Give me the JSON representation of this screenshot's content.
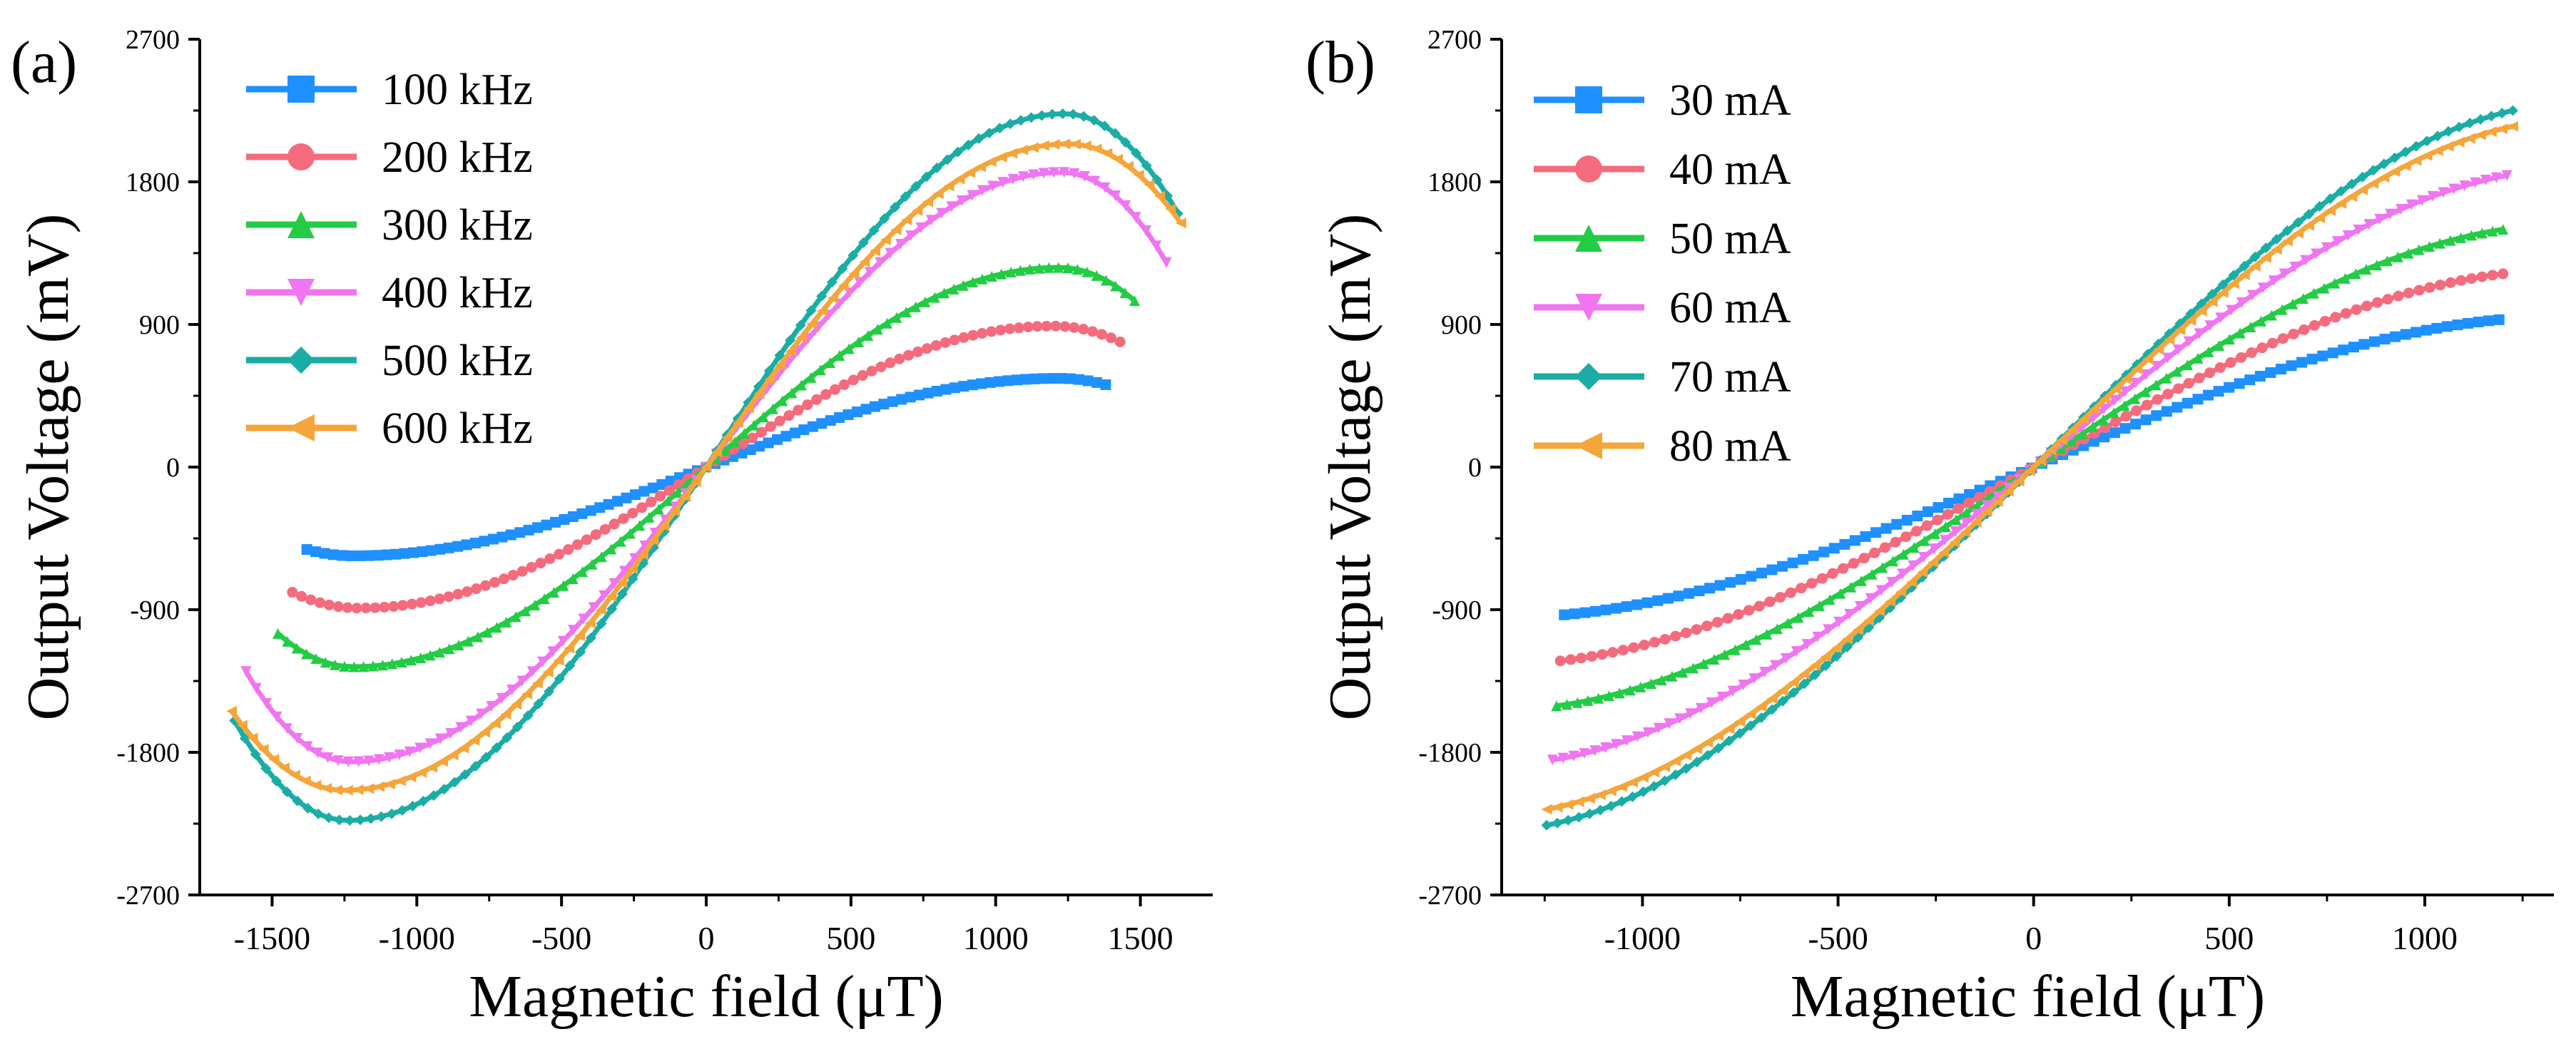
{
  "chart_data": [
    {
      "type": "line",
      "panel_label": "(a)",
      "title": "",
      "xlabel": "Magnetic field (μT)",
      "ylabel": "Output Voltage (mV)",
      "xlim": [
        -1750,
        1750
      ],
      "ylim": [
        -2700,
        2700
      ],
      "xticks": [
        -1500,
        -1000,
        -500,
        0,
        500,
        1000,
        1500
      ],
      "yticks": [
        -2700,
        -1800,
        -900,
        0,
        900,
        1800,
        2700
      ],
      "grid": false,
      "legend_position": "top-left",
      "curve_model": "saturating",
      "series": [
        {
          "name": "100 kHz",
          "color": "#1e90ff",
          "marker": "square",
          "x_range": [
            -1380,
            1380
          ],
          "peak_x": 1220,
          "peak_y": 560,
          "end_y": 520
        },
        {
          "name": "200 kHz",
          "color": "#f56b7e",
          "marker": "circle",
          "x_range": [
            -1430,
            1430
          ],
          "peak_x": 1200,
          "peak_y": 890,
          "end_y": 790
        },
        {
          "name": "300 kHz",
          "color": "#22cc44",
          "marker": "triangle-up",
          "x_range": [
            -1480,
            1480
          ],
          "peak_x": 1220,
          "peak_y": 1260,
          "end_y": 1050
        },
        {
          "name": "400 kHz",
          "color": "#f075f0",
          "marker": "triangle-down",
          "x_range": [
            -1590,
            1590
          ],
          "peak_x": 1230,
          "peak_y": 1860,
          "end_y": 1290
        },
        {
          "name": "500 kHz",
          "color": "#1aada5",
          "marker": "diamond",
          "x_range": [
            -1630,
            1630
          ],
          "peak_x": 1240,
          "peak_y": 2230,
          "end_y": 1600
        },
        {
          "name": "600 kHz",
          "color": "#f5a53a",
          "marker": "triangle-left",
          "x_range": [
            -1640,
            1640
          ],
          "peak_x": 1250,
          "peak_y": 2040,
          "end_y": 1540
        }
      ]
    },
    {
      "type": "line",
      "panel_label": "(b)",
      "title": "",
      "xlabel": "Magnetic field (μT)",
      "ylabel": "Output Voltage (mV)",
      "xlim": [
        -1360,
        1330
      ],
      "ylim": [
        -2700,
        2700
      ],
      "xticks": [
        -1000,
        -500,
        0,
        500,
        1000
      ],
      "yticks": [
        -2700,
        -1800,
        -900,
        0,
        900,
        1800,
        2700
      ],
      "grid": false,
      "legend_position": "top-left",
      "curve_model": "linear-saturating",
      "series": [
        {
          "name": "30 mA",
          "color": "#1e90ff",
          "marker": "square",
          "x_range": [
            -1200,
            1190
          ],
          "end_y": 930
        },
        {
          "name": "40 mA",
          "color": "#f56b7e",
          "marker": "circle",
          "x_range": [
            -1210,
            1200
          ],
          "end_y": 1220
        },
        {
          "name": "50 mA",
          "color": "#22cc44",
          "marker": "triangle-up",
          "x_range": [
            -1220,
            1200
          ],
          "end_y": 1500
        },
        {
          "name": "60 mA",
          "color": "#f075f0",
          "marker": "triangle-down",
          "x_range": [
            -1230,
            1210
          ],
          "end_y": 1840
        },
        {
          "name": "70 mA",
          "color": "#1aada5",
          "marker": "diamond",
          "x_range": [
            -1245,
            1225
          ],
          "end_y": 2250
        },
        {
          "name": "80 mA",
          "color": "#f5a53a",
          "marker": "triangle-left",
          "x_range": [
            -1245,
            1225
          ],
          "end_y": 2150
        }
      ]
    }
  ]
}
